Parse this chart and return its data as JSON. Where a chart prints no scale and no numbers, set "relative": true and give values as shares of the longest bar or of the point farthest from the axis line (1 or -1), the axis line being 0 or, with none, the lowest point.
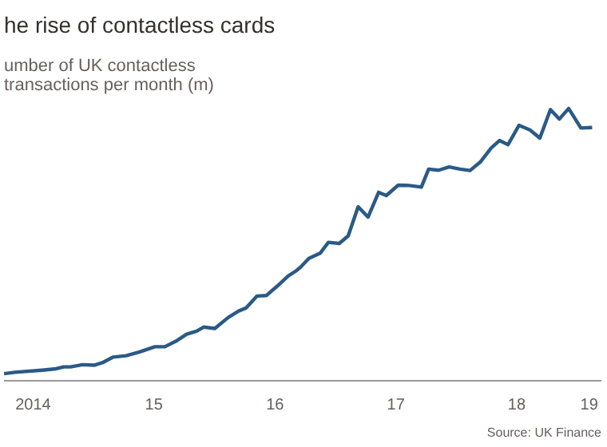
{
  "chart_data": {
    "type": "line",
    "title": "he rise of contactless cards",
    "subtitle": "umber of UK contactless\ntransactions per month (m)",
    "annotations": [
      "Source: UK Finance"
    ],
    "relative": true,
    "x": [
      "2014-04-04",
      "2014-05-07",
      "2014-07-29",
      "2014-09-09",
      "2014-10-01",
      "2014-10-22",
      "2014-11-28",
      "2015-01-01",
      "2015-01-26",
      "2015-02-28",
      "2015-04-08",
      "2015-05-17",
      "2015-07-04",
      "2015-08-03",
      "2015-09-05",
      "2015-10-08",
      "2015-11-07",
      "2015-11-28",
      "2016-01-01",
      "2016-02-10",
      "2016-03-13",
      "2016-04-04",
      "2016-05-07",
      "2016-06-05",
      "2016-07-08",
      "2016-08-10",
      "2016-09-02",
      "2016-09-16",
      "2016-10-11",
      "2016-11-14",
      "2016-12-09",
      "2017-01-11",
      "2017-02-07",
      "2017-03-09",
      "2017-04-08",
      "2017-05-10",
      "2017-06-02",
      "2017-07-08",
      "2017-08-10",
      "2017-09-16",
      "2017-10-08",
      "2017-11-07",
      "2017-12-09",
      "2018-01-11",
      "2018-02-10",
      "2018-03-13",
      "2018-04-15",
      "2018-05-10",
      "2018-06-05",
      "2018-07-08",
      "2018-08-10",
      "2018-09-09",
      "2018-10-11",
      "2018-11-07",
      "2018-12-05",
      "2019-01-11",
      "2019-02-14"
    ],
    "series": [
      {
        "color": "#2a5a86",
        "values": [
          0.026,
          0.031,
          0.039,
          0.044,
          0.051,
          0.051,
          0.059,
          0.057,
          0.066,
          0.087,
          0.092,
          0.105,
          0.125,
          0.125,
          0.145,
          0.171,
          0.182,
          0.197,
          0.192,
          0.232,
          0.256,
          0.267,
          0.311,
          0.313,
          0.348,
          0.385,
          0.403,
          0.417,
          0.449,
          0.468,
          0.508,
          0.504,
          0.532,
          0.639,
          0.601,
          0.692,
          0.68,
          0.718,
          0.717,
          0.711,
          0.777,
          0.773,
          0.785,
          0.777,
          0.772,
          0.803,
          0.855,
          0.882,
          0.867,
          0.938,
          0.921,
          0.891,
          0.996,
          0.961,
          1,
          0.928,
          0.93
        ]
      }
    ],
    "xlim": [
      "2014-04-04",
      "2019-03-14"
    ],
    "xticks": [
      {
        "value": "2014-07-01",
        "label": "2014"
      },
      {
        "value": "2015-07-01",
        "label": "15"
      },
      {
        "value": "2016-07-01",
        "label": "16"
      },
      {
        "value": "2017-07-01",
        "label": "17"
      },
      {
        "value": "2018-07-01",
        "label": "18"
      },
      {
        "value": "2019-02-05",
        "label": "19"
      }
    ],
    "marker": "none",
    "line_style": "solid"
  }
}
